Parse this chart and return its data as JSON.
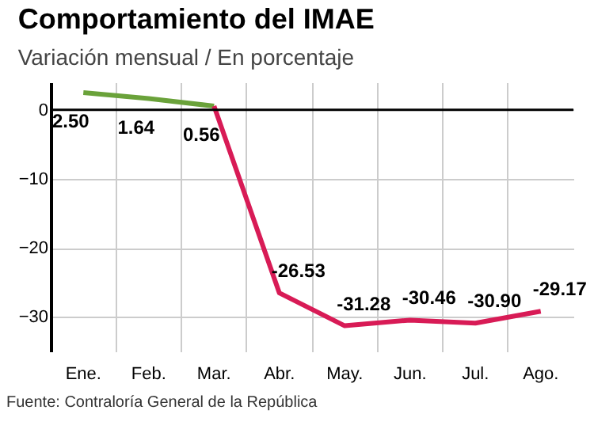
{
  "chart_data": {
    "type": "line",
    "title": "Comportamiento del IMAE",
    "subtitle": "Variación mensual / En porcentaje",
    "categories": [
      "Ene.",
      "Feb.",
      "Mar.",
      "Abr.",
      "May.",
      "Jun.",
      "Jul.",
      "Ago."
    ],
    "series": [
      {
        "color": "#6aa23a",
        "values": [
          2.5,
          1.64,
          0.56,
          null,
          null,
          null,
          null,
          null
        ],
        "value_labels": [
          "2.50",
          "1.64",
          "0.56",
          null,
          null,
          null,
          null,
          null
        ]
      },
      {
        "color": "#d81b56",
        "values": [
          null,
          null,
          0.56,
          -26.53,
          -31.28,
          -30.46,
          -30.9,
          -29.17
        ],
        "value_labels": [
          null,
          null,
          null,
          "-26.53",
          "-31.28",
          "-30.46",
          "-30.90",
          "-29.17"
        ]
      }
    ],
    "ylim": [
      -35,
      4
    ],
    "yticks": [
      0,
      -10,
      -20,
      -30
    ],
    "grid": true,
    "marker": "none",
    "line_style": "solid",
    "ref_lines": [
      {
        "axis": "y",
        "value": 0,
        "color": "#000000"
      }
    ],
    "annotations": [
      "Fuente: Contraloría General de la República"
    ]
  }
}
